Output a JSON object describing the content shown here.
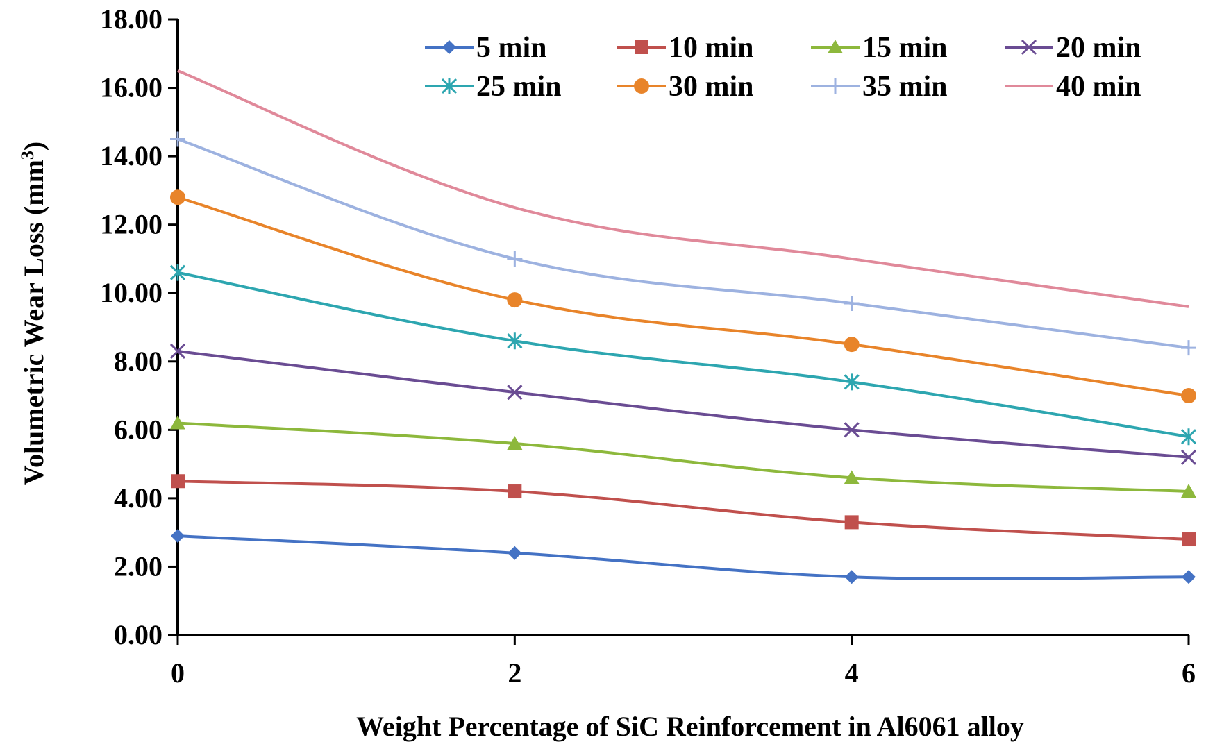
{
  "chart_data": {
    "type": "line",
    "title": "",
    "xlabel": "Weight Percentage of SiC Reinforcement in Al6061 alloy",
    "ylabel": "Volumetric Wear Loss (mm",
    "ylabel_superscript": "3",
    "ylabel_suffix": ")",
    "x": [
      0,
      2,
      4,
      6
    ],
    "x_tick_labels": [
      "0",
      "2",
      "4",
      "6"
    ],
    "y_tick_labels": [
      "0.00",
      "2.00",
      "4.00",
      "6.00",
      "8.00",
      "10.00",
      "12.00",
      "14.00",
      "16.00",
      "18.00"
    ],
    "xlim": [
      0,
      6
    ],
    "ylim": [
      0,
      18
    ],
    "grid": false,
    "legend_position": "top-right",
    "series": [
      {
        "name": "5 min",
        "color": "#4472C4",
        "marker": "diamond",
        "values": [
          2.9,
          2.4,
          1.7,
          1.7
        ]
      },
      {
        "name": "10 min",
        "color": "#C0504D",
        "marker": "square",
        "values": [
          4.5,
          4.2,
          3.3,
          2.8
        ]
      },
      {
        "name": "15 min",
        "color": "#8DB83C",
        "marker": "triangle",
        "values": [
          6.2,
          5.6,
          4.6,
          4.2
        ]
      },
      {
        "name": "20 min",
        "color": "#6A4C93",
        "marker": "x",
        "values": [
          8.3,
          7.1,
          6.0,
          5.2
        ]
      },
      {
        "name": "25 min",
        "color": "#2DA6B0",
        "marker": "star",
        "values": [
          10.6,
          8.6,
          7.4,
          5.8
        ]
      },
      {
        "name": "30 min",
        "color": "#E8842A",
        "marker": "circle",
        "values": [
          12.8,
          9.8,
          8.5,
          7.0
        ]
      },
      {
        "name": "35 min",
        "color": "#9DB2E0",
        "marker": "plus",
        "values": [
          14.5,
          11.0,
          9.7,
          8.4
        ]
      },
      {
        "name": "40 min",
        "color": "#E0899A",
        "marker": "none",
        "values": [
          16.5,
          12.5,
          11.0,
          9.6
        ]
      }
    ]
  }
}
